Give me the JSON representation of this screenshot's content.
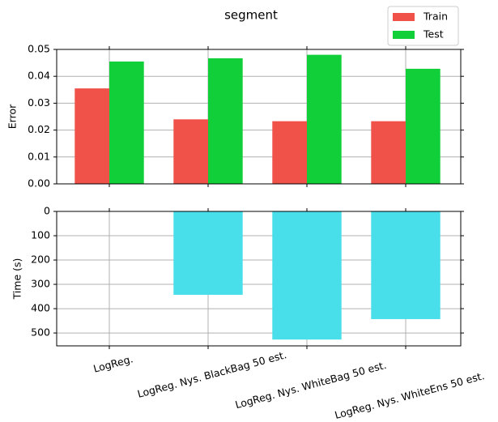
{
  "chart_data": [
    {
      "type": "grouped-bar",
      "title": "segment",
      "ylabel": "Error",
      "categories": [
        "LogReg.",
        "LogReg. Nys. BlackBag 50 est.",
        "LogReg. Nys. WhiteBag 50 est.",
        "LogReg. Nys. WhiteEns 50 est."
      ],
      "series": [
        {
          "name": "Train",
          "color": "#f0524a",
          "values": [
            0.0355,
            0.024,
            0.0233,
            0.0233
          ]
        },
        {
          "name": "Test",
          "color": "#10cf39",
          "values": [
            0.0455,
            0.0467,
            0.048,
            0.0428
          ]
        }
      ],
      "ylim": [
        0,
        0.05
      ],
      "yticks": [
        {
          "value": 0,
          "label": "0.00"
        },
        {
          "value": 0.01,
          "label": "0.01"
        },
        {
          "value": 0.02,
          "label": "0.02"
        },
        {
          "value": 0.03,
          "label": "0.03"
        },
        {
          "value": 0.04,
          "label": "0.04"
        },
        {
          "value": 0.05,
          "label": "0.05"
        }
      ],
      "grid": true,
      "legend": "upper right"
    },
    {
      "type": "bar",
      "ylabel": "Time (s)",
      "color": "#48dfeb",
      "values": [
        1,
        343,
        527,
        443
      ],
      "ylim": [
        553,
        0
      ],
      "yticks": [
        0,
        100,
        200,
        300,
        400,
        500
      ],
      "grid": true
    }
  ]
}
